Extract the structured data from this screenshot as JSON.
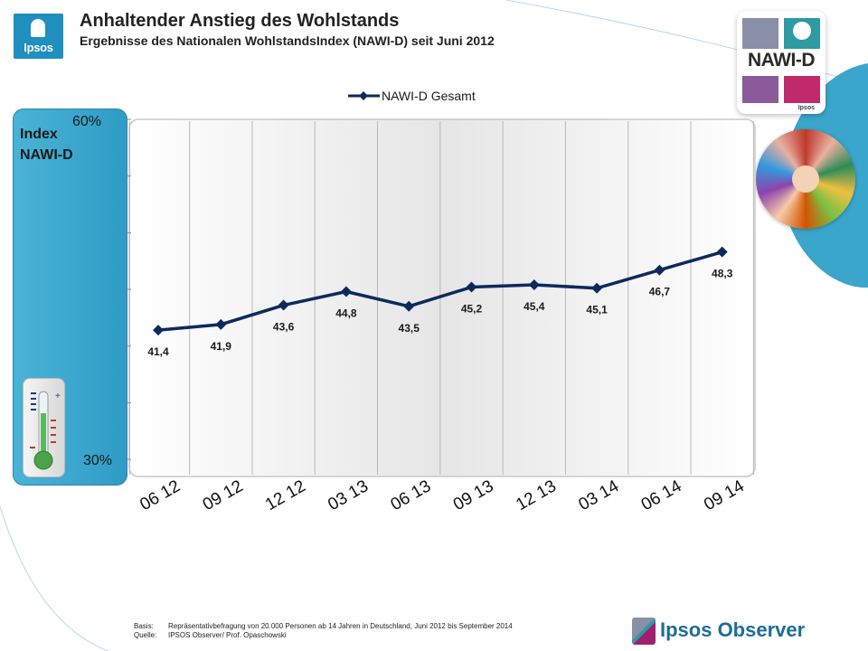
{
  "header": {
    "title": "Anhaltender Anstieg des Wohlstands",
    "subtitle": "Ergebnisse des Nationalen WohlstandsIndex (NAWI-D) seit Juni 2012"
  },
  "logo": {
    "text": "Ipsos"
  },
  "badge": {
    "text": "NAWI-D",
    "sub": "Ipsos"
  },
  "side_panel": {
    "label_line1": "Index",
    "label_line2": "NAWI-D"
  },
  "chart_data": {
    "type": "line",
    "categories": [
      "06 12",
      "09 12",
      "12 12",
      "03 13",
      "06 13",
      "09 13",
      "12 13",
      "03 14",
      "06 14",
      "09 14"
    ],
    "series": [
      {
        "name": "NAWI-D Gesamt",
        "values": [
          41.4,
          41.9,
          43.6,
          44.8,
          43.5,
          45.2,
          45.4,
          45.1,
          46.7,
          48.3
        ],
        "labels": [
          "41,4",
          "41,9",
          "43,6",
          "44,8",
          "43,5",
          "45,2",
          "45,4",
          "45,1",
          "46,7",
          "48,3"
        ]
      }
    ],
    "ylim": [
      30,
      60
    ],
    "y_tick_labels": {
      "top": "60%",
      "bottom": "30%"
    },
    "legend": "top",
    "grid": "vertical",
    "colors": {
      "line": "#0d2a5c",
      "panel": "#3aaad3"
    }
  },
  "footer": {
    "basis_label": "Basis:",
    "basis_text": "Repräsentativbefragung von 20.000 Personen ab 14 Jahren in Deutschland, Juni 2012 bis September 2014",
    "source_label": "Quelle:",
    "source_text": "IPSOS Observer/ Prof. Opaschowski"
  },
  "brand": {
    "text": "Ipsos Observer"
  }
}
